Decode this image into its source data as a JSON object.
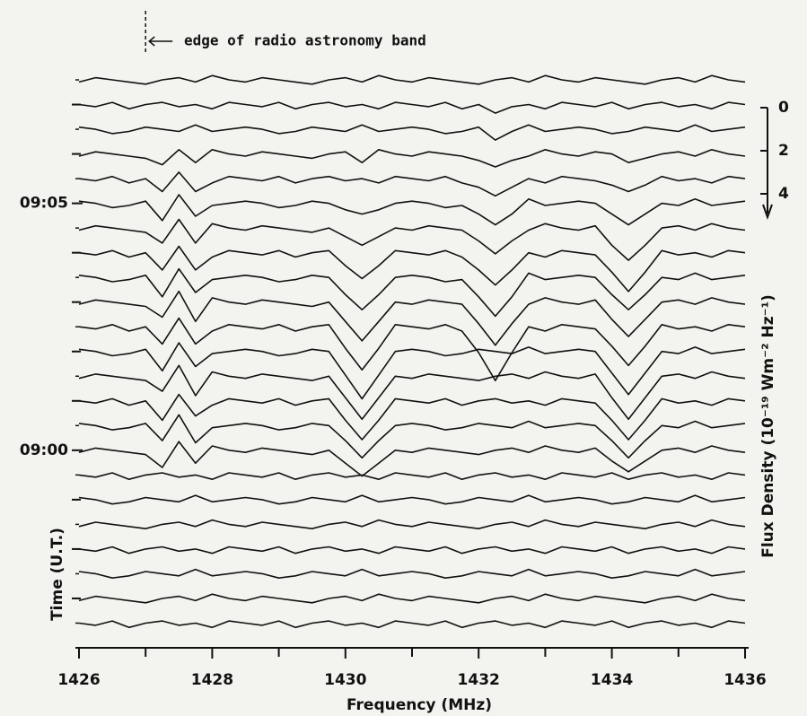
{
  "chart_data": {
    "type": "waterfall",
    "annotation": {
      "text": "edge of radio astronomy band",
      "x": 1427
    },
    "xlabel": "Frequency (MHz)",
    "ylabel": "Time (U.T.)",
    "flux_label": "Flux Density (10⁻¹⁹ Wm⁻² Hz⁻¹)",
    "xlim": [
      1426,
      1436
    ],
    "xticks": [
      1426,
      1428,
      1430,
      1432,
      1434,
      1436
    ],
    "xminor": [
      1427,
      1429,
      1431,
      1433,
      1435
    ],
    "ylim": [
      -4,
      7.9
    ],
    "yticks": [
      {
        "value": 5,
        "label": "09:05"
      },
      {
        "value": 0,
        "label": "09:00"
      }
    ],
    "yminor": [
      -3,
      -2,
      -1,
      1,
      2,
      3,
      4,
      6,
      7
    ],
    "flux_ticks": [
      0,
      2,
      4
    ],
    "color": "#111111",
    "x": [
      1426,
      1426.25,
      1426.5,
      1426.75,
      1427,
      1427.25,
      1427.5,
      1427.75,
      1428,
      1428.25,
      1428.5,
      1428.75,
      1429,
      1429.25,
      1429.5,
      1429.75,
      1430,
      1430.25,
      1430.5,
      1430.75,
      1431,
      1431.25,
      1431.5,
      1431.75,
      1432,
      1432.25,
      1432.5,
      1432.75,
      1433,
      1433.25,
      1433.5,
      1433.75,
      1434,
      1434.25,
      1434.5,
      1434.75,
      1435,
      1435.25,
      1435.5,
      1435.75,
      1436
    ],
    "series": [
      {
        "time": 7.5,
        "values": [
          0.1,
          -0.1,
          0,
          0.1,
          0.2,
          0,
          -0.1,
          0.1,
          -0.2,
          0,
          0.1,
          -0.1,
          0,
          0.1,
          0.2,
          0,
          -0.1,
          0.1,
          -0.2,
          0,
          0.1,
          -0.1,
          0,
          0.1,
          0.2,
          0,
          -0.1,
          0.1,
          -0.2,
          0,
          0.1,
          -0.1,
          0,
          0.1,
          0.2,
          0,
          -0.1,
          0.1,
          -0.2,
          0,
          0.1
        ]
      },
      {
        "time": 7,
        "values": [
          0,
          0.1,
          -0.1,
          0.2,
          0,
          -0.1,
          0.1,
          0,
          0.2,
          -0.1,
          0,
          0.1,
          -0.1,
          0.2,
          0,
          -0.1,
          0.1,
          0,
          0.2,
          -0.1,
          0,
          0.1,
          -0.1,
          0.2,
          0,
          0.4,
          0.1,
          0,
          0.2,
          -0.1,
          0,
          0.1,
          -0.1,
          0.2,
          0,
          -0.1,
          0.1,
          0,
          0.2,
          -0.1,
          0
        ]
      },
      {
        "time": 6.5,
        "values": [
          -0.1,
          0,
          0.2,
          0.1,
          -0.1,
          0,
          0.1,
          -0.2,
          0.1,
          0,
          -0.1,
          0,
          0.2,
          0.1,
          -0.1,
          0,
          0.1,
          -0.2,
          0.1,
          0,
          -0.1,
          0,
          0.2,
          0.1,
          -0.1,
          0.5,
          0.1,
          -0.2,
          0.1,
          0,
          -0.1,
          0,
          0.2,
          0.1,
          -0.1,
          0,
          0.1,
          -0.2,
          0.1,
          0,
          -0.1
        ]
      },
      {
        "time": 6,
        "values": [
          0.1,
          -0.1,
          0,
          0.1,
          0.2,
          0.5,
          -0.2,
          0.4,
          -0.2,
          0,
          0.1,
          -0.1,
          0,
          0.1,
          0.2,
          0,
          -0.1,
          0.4,
          -0.2,
          0,
          0.1,
          -0.1,
          0,
          0.1,
          0.3,
          0.6,
          0.3,
          0.1,
          -0.2,
          0,
          0.1,
          -0.1,
          0,
          0.4,
          0.2,
          0,
          -0.1,
          0.1,
          -0.2,
          0,
          0.1
        ]
      },
      {
        "time": 5.5,
        "values": [
          0,
          0.1,
          -0.1,
          0.2,
          0,
          0.6,
          -0.3,
          0.6,
          0.2,
          -0.1,
          0,
          0.1,
          -0.1,
          0.2,
          0,
          -0.1,
          0.1,
          0,
          0.2,
          -0.1,
          0,
          0.1,
          -0.1,
          0.2,
          0.4,
          0.8,
          0.4,
          0,
          0.2,
          -0.1,
          0,
          0.1,
          0.3,
          0.6,
          0.3,
          -0.1,
          0.1,
          0,
          0.2,
          -0.1,
          0
        ]
      },
      {
        "time": 5,
        "values": [
          -0.1,
          0,
          0.2,
          0.1,
          -0.1,
          0.8,
          -0.4,
          0.6,
          0.1,
          0,
          -0.1,
          0,
          0.2,
          0.1,
          -0.1,
          0,
          0.3,
          0.5,
          0.3,
          0,
          -0.1,
          0,
          0.2,
          0.1,
          0.5,
          1,
          0.5,
          -0.2,
          0.1,
          0,
          -0.1,
          0,
          0.5,
          1,
          0.5,
          0,
          0.1,
          -0.2,
          0.1,
          0,
          -0.1
        ]
      },
      {
        "time": 4.5,
        "values": [
          0.1,
          -0.1,
          0,
          0.1,
          0.2,
          0.7,
          -0.4,
          0.7,
          -0.2,
          0,
          0.1,
          -0.1,
          0,
          0.1,
          0.2,
          0,
          0.4,
          0.8,
          0.4,
          0,
          0.1,
          -0.1,
          0,
          0.1,
          0.6,
          1.2,
          0.6,
          0.1,
          -0.2,
          0,
          0.1,
          -0.1,
          0.8,
          1.5,
          0.8,
          0,
          -0.1,
          0.1,
          -0.2,
          0,
          0.1
        ]
      },
      {
        "time": 4,
        "values": [
          0,
          0.1,
          -0.1,
          0.2,
          0,
          0.8,
          -0.3,
          0.8,
          0.2,
          -0.1,
          0,
          0.1,
          -0.1,
          0.2,
          0,
          -0.1,
          0.6,
          1.2,
          0.6,
          -0.1,
          0,
          0.1,
          -0.1,
          0.2,
          0.8,
          1.5,
          0.8,
          0,
          0.2,
          -0.1,
          0,
          0.1,
          0.9,
          1.8,
          0.9,
          -0.1,
          0.1,
          0,
          0.2,
          -0.1,
          0
        ]
      },
      {
        "time": 3.5,
        "values": [
          -0.1,
          0,
          0.2,
          0.1,
          -0.1,
          0.9,
          -0.4,
          0.7,
          0.1,
          0,
          -0.1,
          0,
          0.2,
          0.1,
          -0.1,
          0,
          0.8,
          1.5,
          0.8,
          0,
          -0.1,
          0,
          0.2,
          0.1,
          0.9,
          1.8,
          0.9,
          -0.2,
          0.1,
          0,
          -0.1,
          0,
          0.8,
          1.5,
          0.8,
          0,
          0.1,
          -0.2,
          0.1,
          0,
          -0.1
        ]
      },
      {
        "time": 3,
        "values": [
          0.1,
          -0.1,
          0,
          0.1,
          0.2,
          0.7,
          -0.5,
          0.9,
          -0.2,
          0,
          0.1,
          -0.1,
          0,
          0.1,
          0.2,
          0,
          0.9,
          1.8,
          0.9,
          0,
          0.1,
          -0.1,
          0,
          0.1,
          1,
          2,
          1,
          0.1,
          -0.2,
          0,
          0.1,
          -0.1,
          0.8,
          1.6,
          0.8,
          0,
          -0.1,
          0.1,
          -0.2,
          0,
          0.1
        ]
      },
      {
        "time": 2.5,
        "values": [
          0,
          0.1,
          -0.1,
          0.2,
          0,
          0.8,
          -0.4,
          0.8,
          0.2,
          -0.1,
          0,
          0.1,
          -0.1,
          0.2,
          0,
          -0.1,
          1,
          2,
          1,
          -0.1,
          0,
          0.1,
          -0.1,
          0.2,
          1.2,
          2.5,
          1.2,
          0,
          0.2,
          -0.1,
          0,
          0.1,
          0.9,
          1.8,
          0.9,
          -0.1,
          0.1,
          0,
          0.2,
          -0.1,
          0
        ]
      },
      {
        "time": 2,
        "values": [
          -0.1,
          0,
          0.2,
          0.1,
          -0.1,
          0.9,
          -0.4,
          0.7,
          0.1,
          0,
          -0.1,
          0,
          0.2,
          0.1,
          -0.1,
          0,
          1.1,
          2.2,
          1.1,
          0,
          -0.1,
          0,
          0.2,
          0.1,
          -0.1,
          0,
          0.1,
          -0.2,
          0.1,
          0,
          -0.1,
          0,
          1,
          2,
          1,
          0,
          0.1,
          -0.2,
          0.1,
          0,
          -0.1
        ]
      },
      {
        "time": 1.5,
        "values": [
          0.1,
          -0.1,
          0,
          0.1,
          0.2,
          0.7,
          -0.5,
          0.9,
          -0.2,
          0,
          0.1,
          -0.1,
          0,
          0.1,
          0.2,
          0,
          1,
          2,
          1,
          0,
          0.1,
          -0.1,
          0,
          0.1,
          0.2,
          0,
          -0.1,
          0.1,
          -0.2,
          0,
          0.1,
          -0.1,
          1,
          2,
          1,
          0,
          -0.1,
          0.1,
          -0.2,
          0,
          0.1
        ]
      },
      {
        "time": 1,
        "values": [
          0,
          0.1,
          -0.1,
          0.2,
          0,
          0.9,
          -0.3,
          0.7,
          0.2,
          -0.1,
          0,
          0.1,
          -0.1,
          0.2,
          0,
          -0.1,
          0.9,
          1.8,
          0.9,
          -0.1,
          0,
          0.1,
          -0.1,
          0.2,
          0,
          -0.1,
          0.1,
          0,
          0.2,
          -0.1,
          0,
          0.1,
          0.9,
          1.8,
          0.9,
          -0.1,
          0.1,
          0,
          0.2,
          -0.1,
          0
        ]
      },
      {
        "time": 0.5,
        "values": [
          -0.1,
          0,
          0.2,
          0.1,
          -0.1,
          0.7,
          -0.5,
          0.8,
          0.1,
          0,
          -0.1,
          0,
          0.2,
          0.1,
          -0.1,
          0,
          0.7,
          1.5,
          0.7,
          0,
          -0.1,
          0,
          0.2,
          0.1,
          -0.1,
          0,
          0.1,
          -0.2,
          0.1,
          0,
          -0.1,
          0,
          0.7,
          1.5,
          0.7,
          0,
          0.1,
          -0.2,
          0.1,
          0,
          -0.1
        ]
      },
      {
        "time": 0,
        "values": [
          0.1,
          -0.1,
          0,
          0.1,
          0.2,
          0.8,
          -0.4,
          0.6,
          -0.2,
          0,
          0.1,
          -0.1,
          0,
          0.1,
          0.2,
          0,
          0.6,
          1.2,
          0.6,
          0,
          0.1,
          -0.1,
          0,
          0.1,
          0.2,
          0,
          -0.1,
          0.1,
          -0.2,
          0,
          0.1,
          -0.1,
          0.5,
          1,
          0.5,
          0,
          -0.1,
          0.1,
          -0.2,
          0,
          0.1
        ]
      },
      {
        "time": -0.5,
        "values": [
          0,
          0.1,
          -0.1,
          0.2,
          0,
          -0.1,
          0.1,
          0,
          0.2,
          -0.1,
          0,
          0.1,
          -0.1,
          0.2,
          0,
          -0.1,
          0.1,
          0,
          0.2,
          -0.1,
          0,
          0.1,
          -0.1,
          0.2,
          0,
          -0.1,
          0.1,
          0,
          0.2,
          -0.1,
          0,
          0.1,
          -0.1,
          0.2,
          0,
          -0.1,
          0.1,
          0,
          0.2,
          -0.1,
          0
        ]
      },
      {
        "time": -1,
        "values": [
          -0.1,
          0,
          0.2,
          0.1,
          -0.1,
          0,
          0.1,
          -0.2,
          0.1,
          0,
          -0.1,
          0,
          0.2,
          0.1,
          -0.1,
          0,
          0.1,
          -0.2,
          0.1,
          0,
          -0.1,
          0,
          0.2,
          0.1,
          -0.1,
          0,
          0.1,
          -0.2,
          0.1,
          0,
          -0.1,
          0,
          0.2,
          0.1,
          -0.1,
          0,
          0.1,
          -0.2,
          0.1,
          0,
          -0.1
        ]
      },
      {
        "time": -1.5,
        "values": [
          0.1,
          -0.1,
          0,
          0.1,
          0.2,
          0,
          -0.1,
          0.1,
          -0.2,
          0,
          0.1,
          -0.1,
          0,
          0.1,
          0.2,
          0,
          -0.1,
          0.1,
          -0.2,
          0,
          0.1,
          -0.1,
          0,
          0.1,
          0.2,
          0,
          -0.1,
          0.1,
          -0.2,
          0,
          0.1,
          -0.1,
          0,
          0.1,
          0.2,
          0,
          -0.1,
          0.1,
          -0.2,
          0,
          0.1
        ]
      },
      {
        "time": -2,
        "values": [
          0,
          0.1,
          -0.1,
          0.2,
          0,
          -0.1,
          0.1,
          0,
          0.2,
          -0.1,
          0,
          0.1,
          -0.1,
          0.2,
          0,
          -0.1,
          0.1,
          0,
          0.2,
          -0.1,
          0,
          0.1,
          -0.1,
          0.2,
          0,
          -0.1,
          0.1,
          0,
          0.2,
          -0.1,
          0,
          0.1,
          -0.1,
          0.2,
          0,
          -0.1,
          0.1,
          0,
          0.2,
          -0.1,
          0
        ]
      },
      {
        "time": -2.5,
        "values": [
          -0.1,
          0,
          0.2,
          0.1,
          -0.1,
          0,
          0.1,
          -0.2,
          0.1,
          0,
          -0.1,
          0,
          0.2,
          0.1,
          -0.1,
          0,
          0.1,
          -0.2,
          0.1,
          0,
          -0.1,
          0,
          0.2,
          0.1,
          -0.1,
          0,
          0.1,
          -0.2,
          0.1,
          0,
          -0.1,
          0,
          0.2,
          0.1,
          -0.1,
          0,
          0.1,
          -0.2,
          0.1,
          0,
          -0.1
        ]
      },
      {
        "time": -3,
        "values": [
          0.1,
          -0.1,
          0,
          0.1,
          0.2,
          0,
          -0.1,
          0.1,
          -0.2,
          0,
          0.1,
          -0.1,
          0,
          0.1,
          0.2,
          0,
          -0.1,
          0.1,
          -0.2,
          0,
          0.1,
          -0.1,
          0,
          0.1,
          0.2,
          0,
          -0.1,
          0.1,
          -0.2,
          0,
          0.1,
          -0.1,
          0,
          0.1,
          0.2,
          0,
          -0.1,
          0.1,
          -0.2,
          0,
          0.1
        ]
      },
      {
        "time": -3.5,
        "values": [
          0,
          0.1,
          -0.1,
          0.2,
          0,
          -0.1,
          0.1,
          0,
          0.2,
          -0.1,
          0,
          0.1,
          -0.1,
          0.2,
          0,
          -0.1,
          0.1,
          0,
          0.2,
          -0.1,
          0,
          0.1,
          -0.1,
          0.2,
          0,
          -0.1,
          0.1,
          0,
          0.2,
          -0.1,
          0,
          0.1,
          -0.1,
          0.2,
          0,
          -0.1,
          0.1,
          0,
          0.2,
          -0.1,
          0
        ]
      }
    ]
  }
}
